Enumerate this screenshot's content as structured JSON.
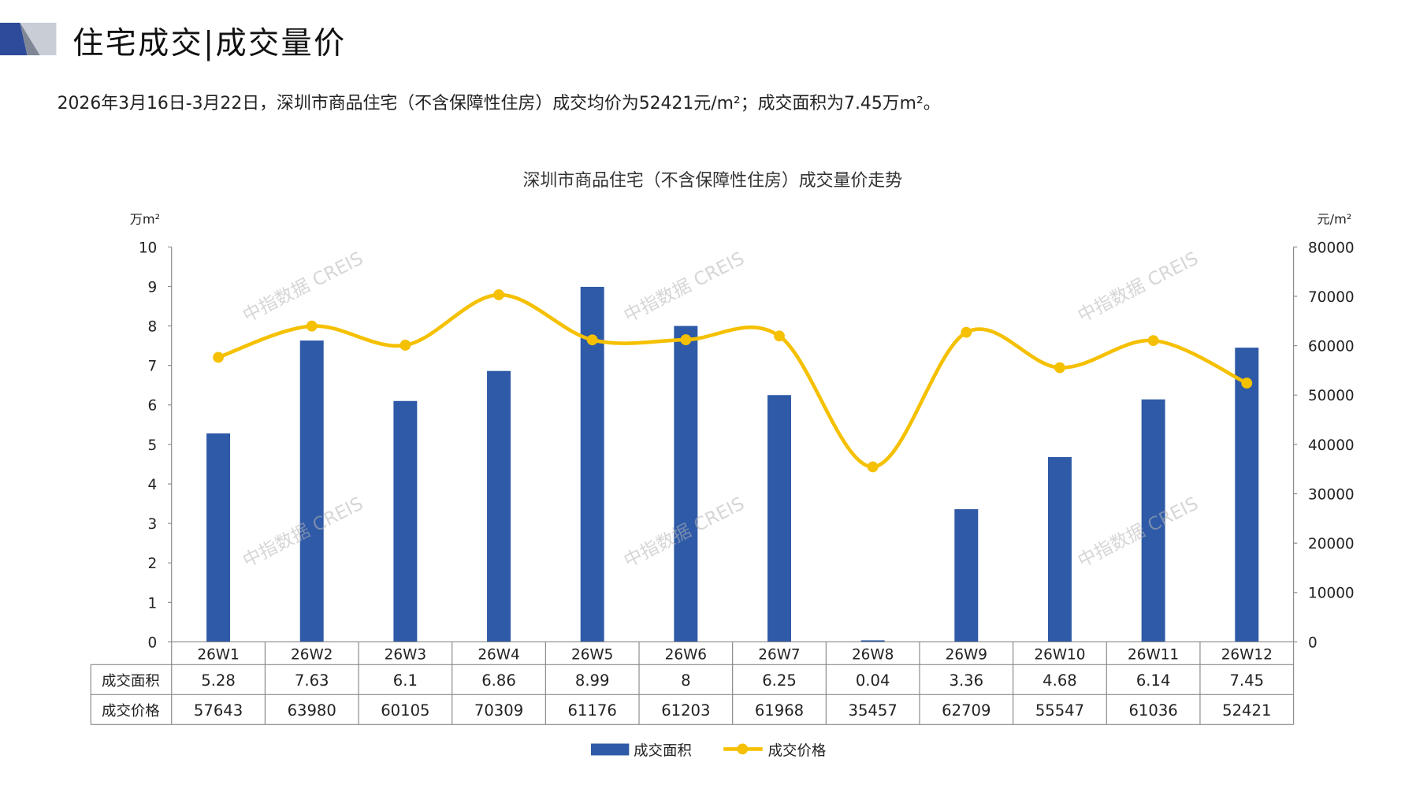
{
  "header": {
    "title": "住宅成交|成交量价"
  },
  "summary": "2026年3月16日-3月22日，深圳市商品住宅（不含保障性住房）成交均价为52421元/m²；成交面积为7.45万m²。",
  "watermark": "中指数据 CREIS",
  "colors": {
    "bar": "#2E5AA7",
    "line": "#F5C000",
    "accent_dark": "#2E4A9A",
    "accent_gray": "#C8CDD6"
  },
  "chart_data": {
    "type": "bar+line",
    "title": "深圳市商品住宅（不含保障性住房）成交量价走势",
    "categories": [
      "26W1",
      "26W2",
      "26W3",
      "26W4",
      "26W5",
      "26W6",
      "26W7",
      "26W8",
      "26W9",
      "26W10",
      "26W11",
      "26W12"
    ],
    "series": [
      {
        "name": "成交面积",
        "type": "bar",
        "axis": "left",
        "values": [
          5.28,
          7.63,
          6.1,
          6.86,
          8.99,
          8,
          6.25,
          0.04,
          3.36,
          4.68,
          6.14,
          7.45
        ],
        "display": [
          "5.28",
          "7.63",
          "6.1",
          "6.86",
          "8.99",
          "8",
          "6.25",
          "0.04",
          "3.36",
          "4.68",
          "6.14",
          "7.45"
        ]
      },
      {
        "name": "成交价格",
        "type": "line",
        "axis": "right",
        "values": [
          57643,
          63980,
          60105,
          70309,
          61176,
          61203,
          61968,
          35457,
          62709,
          55547,
          61036,
          52421
        ]
      }
    ],
    "ylabel_left": "万m²",
    "ylabel_right": "元/m²",
    "ylim_left": [
      0,
      10
    ],
    "yticks_left": [
      0,
      1,
      2,
      3,
      4,
      5,
      6,
      7,
      8,
      9,
      10
    ],
    "ylim_right": [
      0,
      80000
    ],
    "yticks_right": [
      0,
      10000,
      20000,
      30000,
      40000,
      50000,
      60000,
      70000,
      80000
    ],
    "legend": "bottom",
    "data_table": true
  }
}
